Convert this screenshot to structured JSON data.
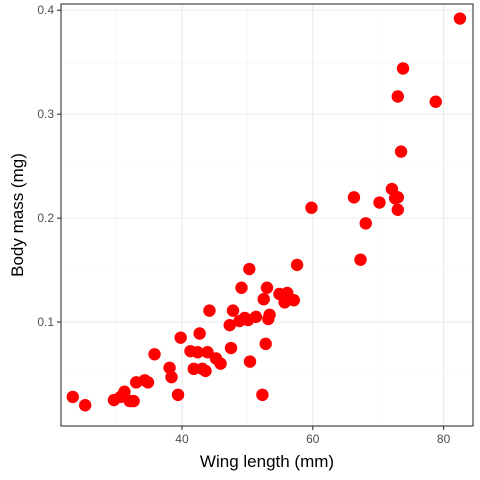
{
  "chart_data": {
    "type": "scatter",
    "title": "",
    "xlabel": "Wing length (mm)",
    "ylabel": "Body mass (mg)",
    "xlim": [
      21.5,
      84.5
    ],
    "ylim": [
      0.0,
      0.406
    ],
    "x_ticks": [
      40,
      60,
      80
    ],
    "y_ticks": [
      0.1,
      0.2,
      0.3,
      0.4
    ],
    "x_tick_labels": [
      "40",
      "60",
      "80"
    ],
    "y_tick_labels": [
      "0.1",
      "0.2",
      "0.3",
      "0.4"
    ],
    "grid": true,
    "legend": "none",
    "point_color": "#ff0000",
    "series": [
      {
        "points": [
          [
            23.3,
            0.028
          ],
          [
            25.2,
            0.02
          ],
          [
            29.6,
            0.025
          ],
          [
            30.6,
            0.028
          ],
          [
            31.2,
            0.033
          ],
          [
            32.0,
            0.024
          ],
          [
            32.6,
            0.024
          ],
          [
            33.0,
            0.042
          ],
          [
            34.3,
            0.044
          ],
          [
            34.8,
            0.042
          ],
          [
            35.8,
            0.069
          ],
          [
            38.1,
            0.056
          ],
          [
            38.4,
            0.047
          ],
          [
            39.4,
            0.03
          ],
          [
            39.8,
            0.085
          ],
          [
            41.3,
            0.072
          ],
          [
            41.8,
            0.055
          ],
          [
            42.4,
            0.071
          ],
          [
            42.7,
            0.089
          ],
          [
            43.1,
            0.055
          ],
          [
            43.6,
            0.053
          ],
          [
            43.9,
            0.071
          ],
          [
            44.2,
            0.111
          ],
          [
            45.2,
            0.065
          ],
          [
            45.9,
            0.06
          ],
          [
            47.3,
            0.097
          ],
          [
            47.5,
            0.075
          ],
          [
            47.8,
            0.111
          ],
          [
            48.8,
            0.101
          ],
          [
            49.1,
            0.133
          ],
          [
            49.6,
            0.104
          ],
          [
            50.1,
            0.102
          ],
          [
            50.3,
            0.151
          ],
          [
            50.4,
            0.062
          ],
          [
            51.3,
            0.105
          ],
          [
            52.3,
            0.03
          ],
          [
            52.5,
            0.122
          ],
          [
            52.8,
            0.079
          ],
          [
            53.0,
            0.133
          ],
          [
            53.2,
            0.103
          ],
          [
            53.4,
            0.107
          ],
          [
            54.9,
            0.127
          ],
          [
            55.7,
            0.119
          ],
          [
            56.1,
            0.128
          ],
          [
            57.1,
            0.121
          ],
          [
            57.6,
            0.155
          ],
          [
            59.8,
            0.21
          ],
          [
            66.3,
            0.22
          ],
          [
            67.3,
            0.16
          ],
          [
            68.1,
            0.195
          ],
          [
            70.2,
            0.215
          ],
          [
            72.1,
            0.228
          ],
          [
            72.6,
            0.219
          ],
          [
            73.0,
            0.22
          ],
          [
            73.0,
            0.208
          ],
          [
            73.0,
            0.317
          ],
          [
            73.5,
            0.264
          ],
          [
            73.8,
            0.344
          ],
          [
            78.8,
            0.312
          ],
          [
            82.5,
            0.392
          ]
        ]
      }
    ]
  }
}
